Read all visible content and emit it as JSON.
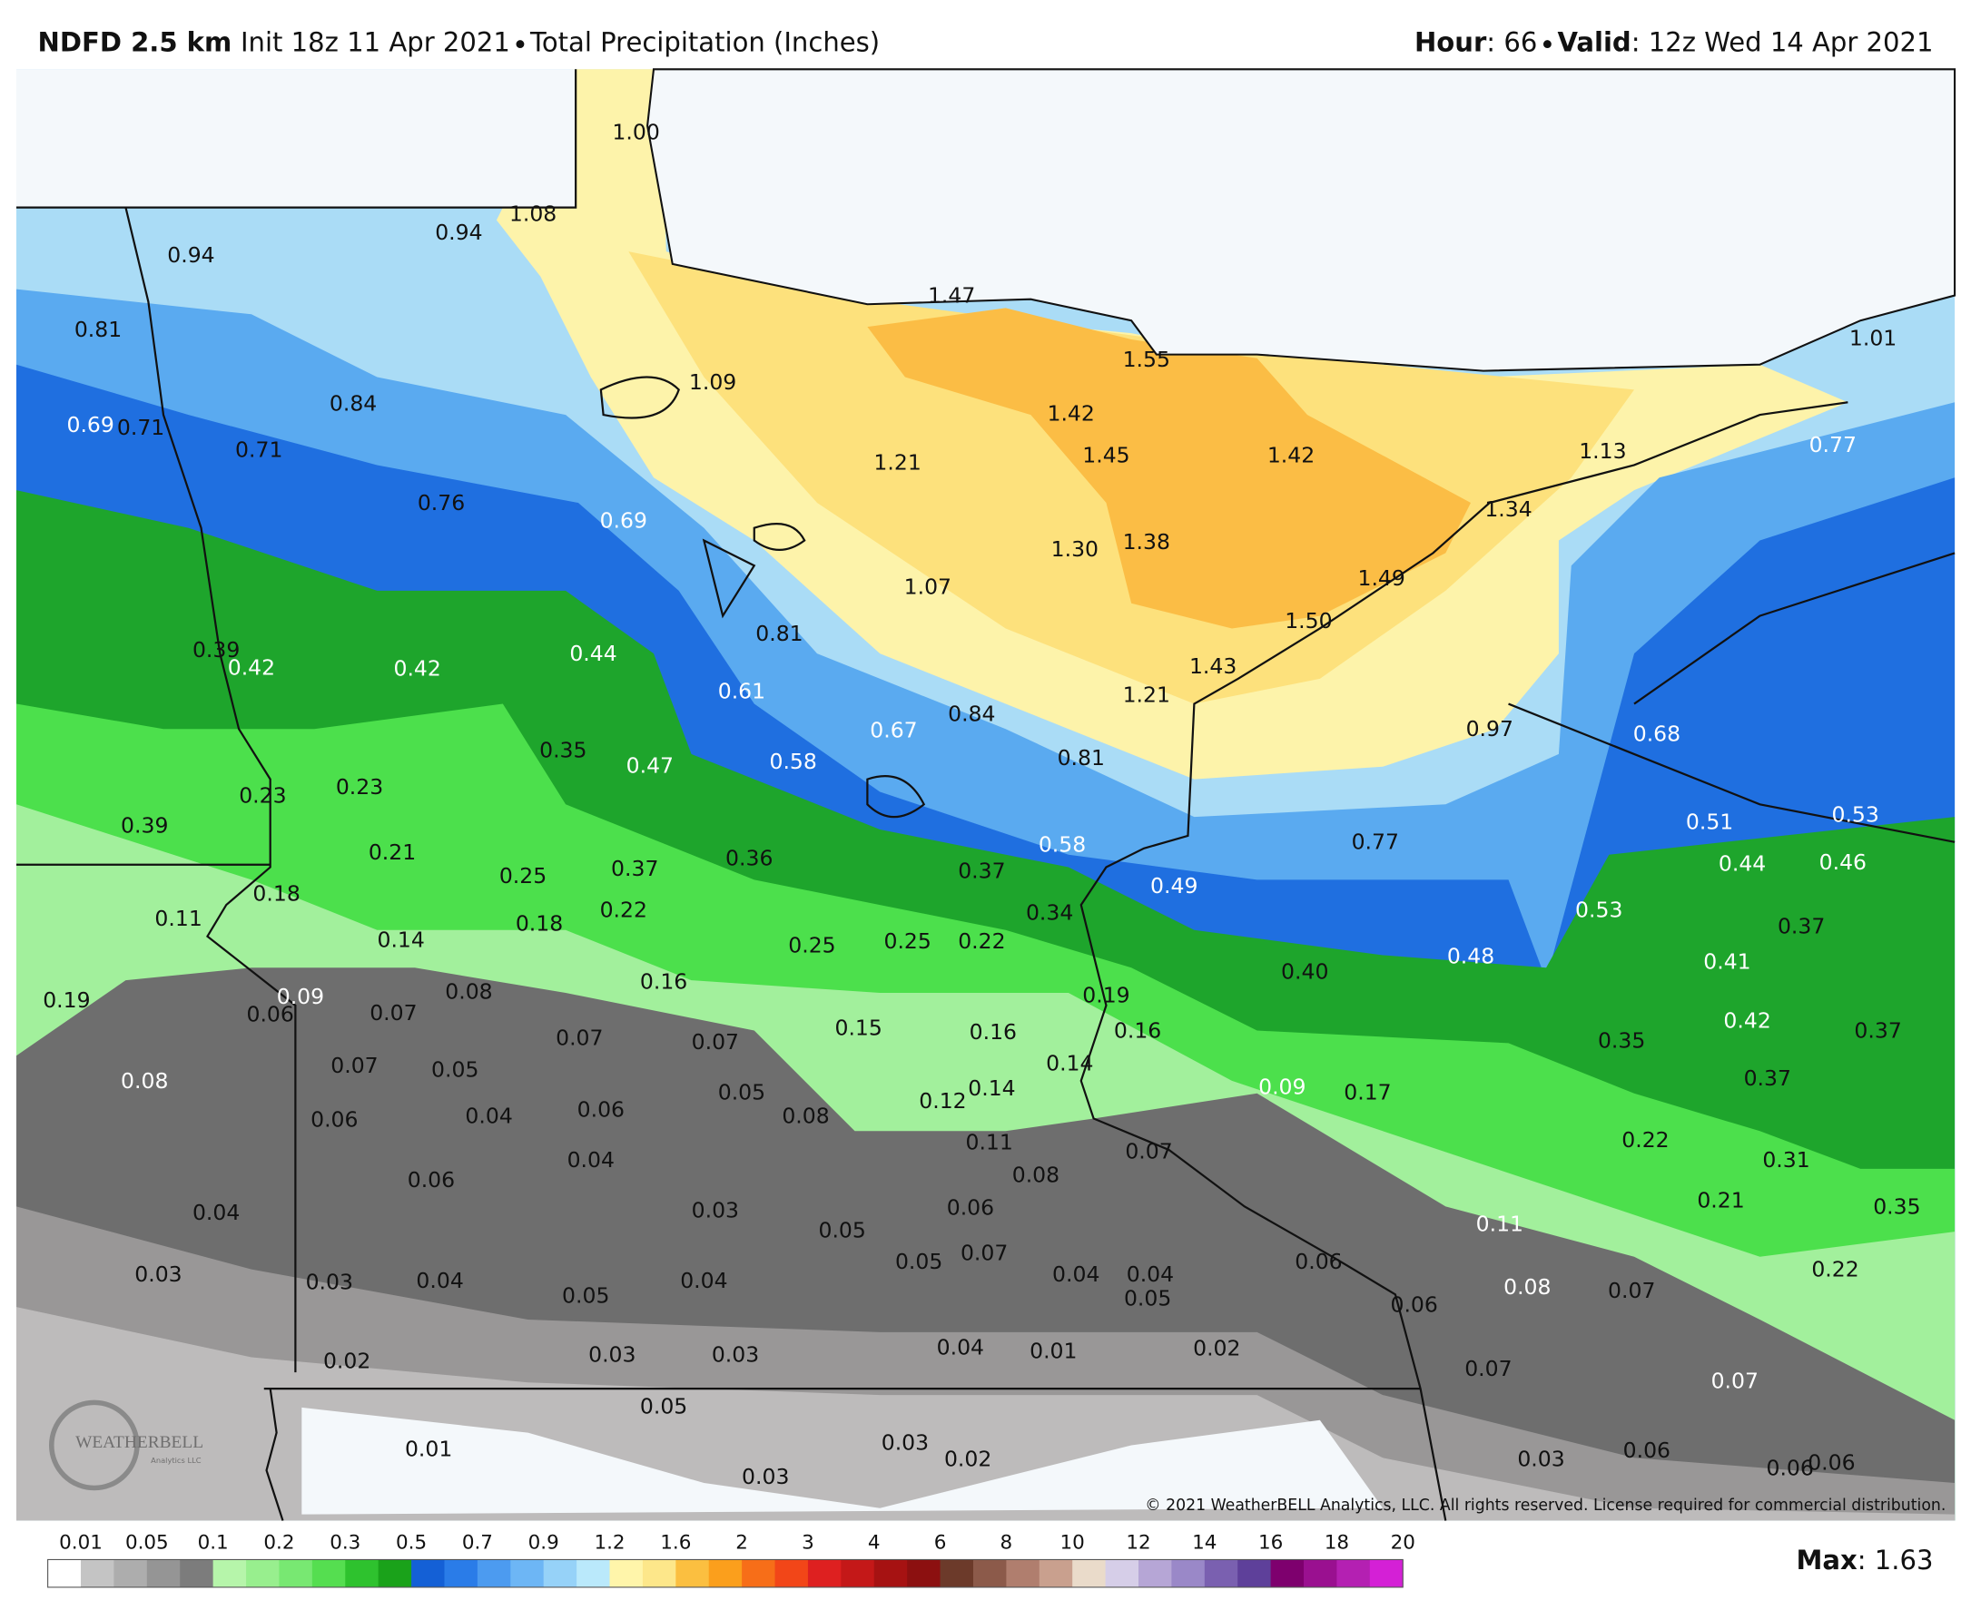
{
  "header": {
    "model": "NDFD 2.5 km",
    "init": "Init 18z 11 Apr 2021",
    "product": "Total Precipitation (Inches)",
    "hour_label": "Hour",
    "hour": ": 66",
    "valid_label": "Valid",
    "valid": ": 12z Wed 14 Apr 2021"
  },
  "map": {
    "labels": [
      "1.00",
      "1.08",
      "0.94",
      "0.94",
      "0.81",
      "1.09",
      "1.47",
      "1.55",
      "1.01",
      "0.84",
      "0.69",
      "0.71",
      "0.71",
      "1.42",
      "1.45",
      "1.42",
      "1.21",
      "1.13",
      "0.77",
      "0.76",
      "0.69",
      "1.34",
      "1.30",
      "1.38",
      "1.07",
      "1.49",
      "1.50",
      "0.81",
      "0.39",
      "0.42",
      "0.42",
      "0.44",
      "1.43",
      "0.61",
      "1.21",
      "0.84",
      "0.67",
      "0.97",
      "0.68",
      "0.35",
      "0.47",
      "0.58",
      "0.81",
      "0.23",
      "0.23",
      "0.39",
      "0.51",
      "0.53",
      "0.21",
      "0.77",
      "0.58",
      "0.44",
      "0.46",
      "0.25",
      "0.37",
      "0.36",
      "0.37",
      "0.49",
      "0.18",
      "0.11",
      "0.22",
      "0.18",
      "0.34",
      "0.53",
      "0.37",
      "0.14",
      "0.25",
      "0.25",
      "0.22",
      "0.48",
      "0.40",
      "0.41",
      "0.19",
      "0.09",
      "0.06",
      "0.07",
      "0.08",
      "0.16",
      "0.19",
      "0.42",
      "0.37",
      "0.07",
      "0.07",
      "0.15",
      "0.16",
      "0.16",
      "0.35",
      "0.07",
      "0.05",
      "0.14",
      "0.08",
      "0.37",
      "0.05",
      "0.14",
      "0.12",
      "0.09",
      "0.17",
      "0.06",
      "0.04",
      "0.06",
      "0.08",
      "0.11",
      "0.07",
      "0.22",
      "0.04",
      "0.31",
      "0.06",
      "0.08",
      "0.04",
      "0.03",
      "0.06",
      "0.21",
      "0.35",
      "0.05",
      "0.11",
      "0.03",
      "0.05",
      "0.07",
      "0.06",
      "0.03",
      "0.04",
      "0.04",
      "0.04",
      "0.04",
      "0.22",
      "0.05",
      "0.05",
      "0.08",
      "0.07",
      "0.06",
      "0.02",
      "0.03",
      "0.03",
      "0.04",
      "0.01",
      "0.02",
      "0.07",
      "0.07",
      "0.05",
      "0.01",
      "0.03",
      "0.02",
      "0.03",
      "0.03",
      "0.06",
      "0.06",
      "0.06"
    ],
    "copyright": "© 2021 WeatherBELL Analytics, LLC. All rights reserved. License required for commercial distribution.",
    "logo": "WEATHERBELL",
    "logo_sub": "Analytics LLC"
  },
  "legend": {
    "ticks": [
      "0.01",
      "0.05",
      "0.1",
      "0.2",
      "0.3",
      "0.5",
      "0.7",
      "0.9",
      "1.2",
      "1.6",
      "2",
      "3",
      "4",
      "6",
      "8",
      "10",
      "12",
      "14",
      "16",
      "18",
      "20"
    ],
    "colors": [
      "#ffffff",
      "#c4c4c4",
      "#adadad",
      "#959595",
      "#7c7c7c",
      "#b6f5aa",
      "#98ef8e",
      "#78e872",
      "#55de50",
      "#2ec22e",
      "#1aa21a",
      "#1460d6",
      "#2a7ce8",
      "#4c9bf0",
      "#6db6f5",
      "#96d2f8",
      "#bae9fb",
      "#fff5aa",
      "#fde78a",
      "#fbbf40",
      "#fb9f1c",
      "#f76e18",
      "#f24618",
      "#de2020",
      "#c41818",
      "#a61212",
      "#8c1010",
      "#6c3a2a",
      "#8c5a4a",
      "#b07e6e",
      "#c9a08e",
      "#eadbca",
      "#d6cee8",
      "#b6a6d6",
      "#9a88c8",
      "#7a60b0",
      "#5e409a",
      "#7e006e",
      "#9a1090",
      "#b420b2",
      "#d420d6"
    ],
    "max_label": "Max",
    "max": ": 1.63"
  }
}
